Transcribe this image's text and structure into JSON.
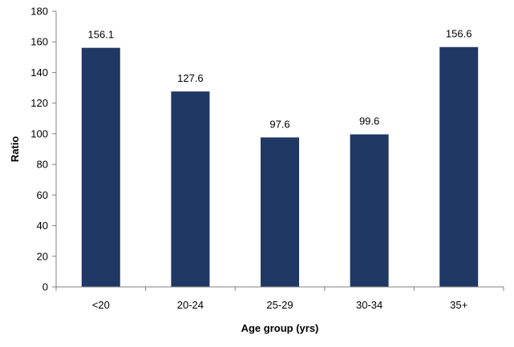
{
  "chart_data": {
    "type": "bar",
    "categories": [
      "<20",
      "20-24",
      "25-29",
      "30-34",
      "35+"
    ],
    "values": [
      156.1,
      127.6,
      97.6,
      99.6,
      156.6
    ],
    "data_labels": [
      "156.1",
      "127.6",
      "97.6",
      "99.6",
      "156.6"
    ],
    "xlabel": "Age group (yrs)",
    "ylabel": "Ratio",
    "ylim": [
      0,
      180
    ],
    "yticks": [
      0,
      20,
      40,
      60,
      80,
      100,
      120,
      140,
      160,
      180
    ],
    "grid": false,
    "legend": "none",
    "bar_color": "#1f3864"
  }
}
